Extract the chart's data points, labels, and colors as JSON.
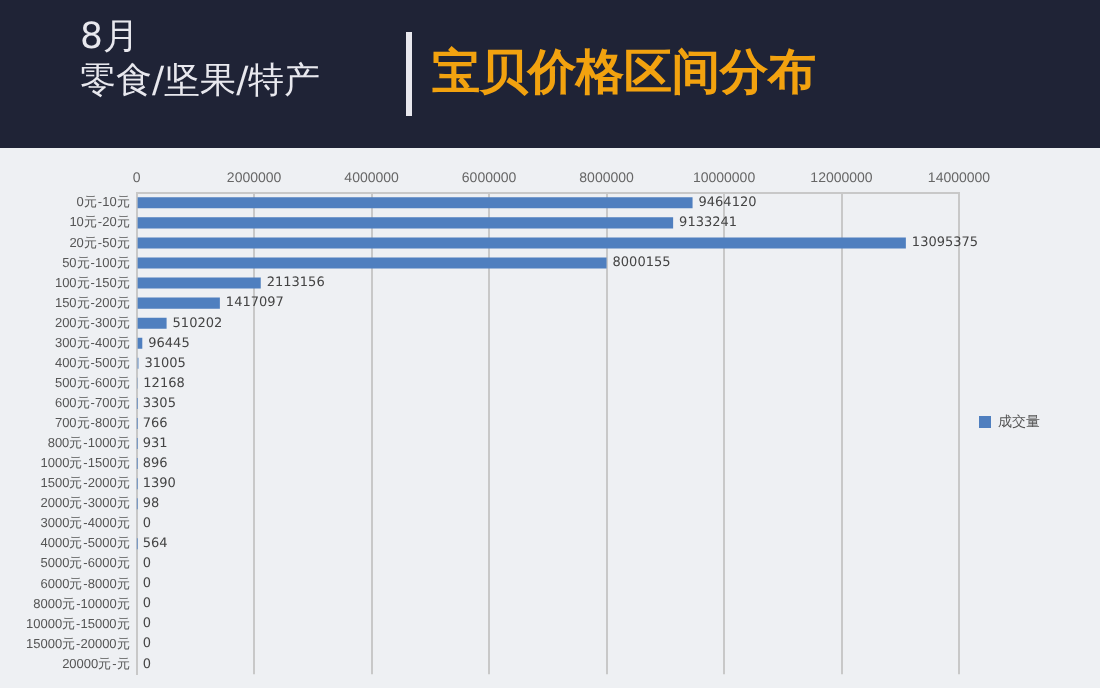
{
  "chart_data": {
    "type": "bar",
    "orientation": "horizontal",
    "title": "宝贝价格区间分布",
    "subtitle": "8月",
    "annotations": [
      "零食/坚果/特产"
    ],
    "categories": [
      "0元-10元",
      "10元-20元",
      "20元-50元",
      "50元-100元",
      "100元-150元",
      "150元-200元",
      "200元-300元",
      "300元-400元",
      "400元-500元",
      "500元-600元",
      "600元-700元",
      "700元-800元",
      "800元-1000元",
      "1000元-1500元",
      "1500元-2000元",
      "2000元-3000元",
      "3000元-4000元",
      "4000元-5000元",
      "5000元-6000元",
      "6000元-8000元",
      "8000元-10000元",
      "10000元-15000元",
      "15000元-20000元",
      "20000元-元"
    ],
    "series": [
      {
        "name": "成交量",
        "color": "#4f7fbf",
        "values": [
          9464120,
          9133241,
          13095375,
          8000155,
          2113156,
          1417097,
          510202,
          96445,
          31005,
          12168,
          3305,
          766,
          931,
          896,
          1390,
          98,
          0,
          564,
          0,
          0,
          0,
          0,
          0,
          0
        ]
      }
    ],
    "xlim": [
      0,
      14000000
    ],
    "xticks": [
      0,
      2000000,
      4000000,
      6000000,
      8000000,
      10000000,
      12000000,
      14000000
    ],
    "grid": "x",
    "legend": "right",
    "data_labels": true
  }
}
